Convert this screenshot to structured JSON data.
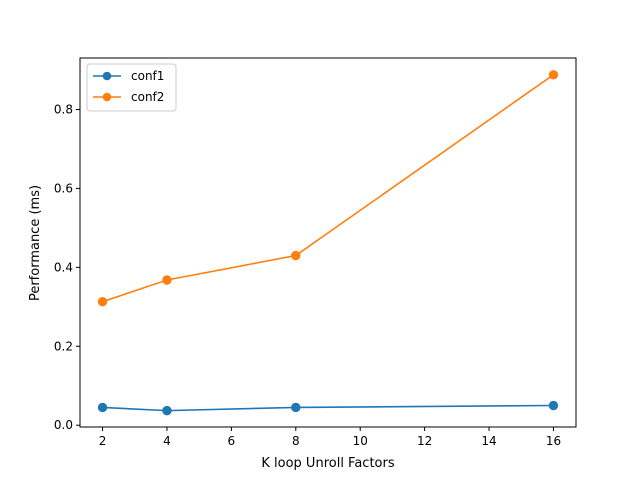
{
  "chart_data": {
    "type": "line",
    "title": "",
    "xlabel": "K loop Unroll Factors",
    "ylabel": "Performance (ms)",
    "xlim": [
      1.3,
      16.7
    ],
    "ylim": [
      -0.0045,
      0.9305
    ],
    "x_ticks": [
      2,
      4,
      6,
      8,
      10,
      12,
      14,
      16
    ],
    "y_ticks": [
      0.0,
      0.2,
      0.4,
      0.6,
      0.8
    ],
    "grid": false,
    "legend": "top-left",
    "series": [
      {
        "name": "conf1",
        "color": "#1f77b4",
        "marker": "circle",
        "x": [
          2,
          4,
          8,
          16
        ],
        "y": [
          0.045,
          0.037,
          0.045,
          0.05
        ]
      },
      {
        "name": "conf2",
        "color": "#ff7f0e",
        "marker": "circle",
        "x": [
          2,
          4,
          8,
          16
        ],
        "y": [
          0.313,
          0.368,
          0.43,
          0.888
        ]
      }
    ]
  }
}
